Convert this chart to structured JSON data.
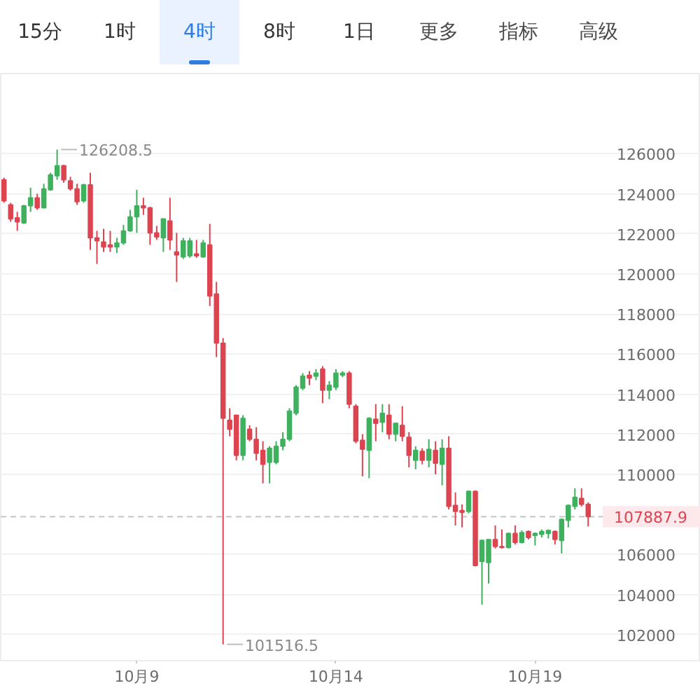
{
  "chart_data": {
    "type": "candlestick",
    "categories": [
      null,
      null,
      null,
      null,
      null,
      null,
      null,
      null,
      null,
      null,
      null,
      null,
      null,
      null,
      null,
      null,
      null,
      null,
      null,
      null,
      "10月9",
      null,
      null,
      null,
      null,
      null,
      null,
      null,
      null,
      null,
      null,
      null,
      null,
      null,
      null,
      null,
      null,
      null,
      null,
      null,
      null,
      null,
      null,
      null,
      null,
      null,
      null,
      null,
      null,
      null,
      "10月14",
      null,
      null,
      null,
      null,
      null,
      null,
      null,
      null,
      null,
      null,
      null,
      null,
      null,
      null,
      null,
      null,
      null,
      null,
      null,
      null,
      null,
      null,
      null,
      null,
      null,
      null,
      null,
      null,
      null,
      "10月19",
      null,
      null,
      null,
      null,
      null,
      null,
      null,
      null
    ],
    "ohlc": [
      [
        124700,
        124800,
        123550,
        123650
      ],
      [
        123450,
        123550,
        122600,
        122750
      ],
      [
        122800,
        123100,
        122150,
        122600
      ],
      [
        122550,
        123450,
        122500,
        123400
      ],
      [
        123400,
        124300,
        123100,
        123800
      ],
      [
        123800,
        124000,
        123200,
        123300
      ],
      [
        123300,
        124500,
        123300,
        124250
      ],
      [
        124200,
        125050,
        124150,
        124950
      ],
      [
        124900,
        126208.5,
        124700,
        125400
      ],
      [
        125400,
        125450,
        124550,
        124700
      ],
      [
        124650,
        124850,
        124150,
        124250
      ],
      [
        124250,
        124500,
        123450,
        123600
      ],
      [
        123650,
        124500,
        123550,
        124450
      ],
      [
        124450,
        125050,
        121200,
        121800
      ],
      [
        121800,
        122150,
        120500,
        121650
      ],
      [
        121600,
        122250,
        121100,
        121350
      ],
      [
        121450,
        122150,
        121100,
        121350
      ],
      [
        121350,
        121800,
        121050,
        121550
      ],
      [
        121550,
        122450,
        121450,
        122150
      ],
      [
        122150,
        123200,
        122100,
        122850
      ],
      [
        122850,
        124200,
        122050,
        123400
      ],
      [
        123400,
        123800,
        122950,
        123300
      ],
      [
        123300,
        123350,
        121450,
        122050
      ],
      [
        122050,
        122400,
        121700,
        121850
      ],
      [
        121800,
        122750,
        121100,
        122750
      ],
      [
        122650,
        123800,
        121200,
        121700
      ],
      [
        121100,
        122050,
        119600,
        120950
      ],
      [
        120850,
        121800,
        120750,
        121650
      ],
      [
        120900,
        121800,
        120800,
        121650
      ],
      [
        121000,
        121700,
        120800,
        120900
      ],
      [
        120850,
        121700,
        120800,
        121550
      ],
      [
        121450,
        122500,
        118400,
        118900
      ],
      [
        119000,
        119600,
        115850,
        116550
      ],
      [
        116550,
        116800,
        101516.5,
        112800
      ],
      [
        112700,
        113300,
        111900,
        112250
      ],
      [
        112950,
        112950,
        110700,
        110950
      ],
      [
        110950,
        112950,
        110700,
        112800
      ],
      [
        112250,
        112450,
        111650,
        111750
      ],
      [
        111750,
        112350,
        110700,
        111050
      ],
      [
        111200,
        111650,
        109550,
        110500
      ],
      [
        110600,
        111400,
        109550,
        111300
      ],
      [
        110600,
        111650,
        110500,
        111400
      ],
      [
        111400,
        112100,
        111200,
        111750
      ],
      [
        111750,
        113300,
        111650,
        113150
      ],
      [
        113050,
        114450,
        112950,
        114350
      ],
      [
        114300,
        115050,
        114200,
        114900
      ],
      [
        114950,
        115150,
        114450,
        114800
      ],
      [
        114900,
        115250,
        114700,
        115050
      ],
      [
        115250,
        115400,
        113550,
        114200
      ],
      [
        114200,
        114650,
        113750,
        114450
      ],
      [
        114350,
        115250,
        114200,
        115050
      ],
      [
        114950,
        115150,
        114850,
        115050
      ],
      [
        115050,
        115150,
        113300,
        113500
      ],
      [
        113400,
        113500,
        111550,
        111650
      ],
      [
        111700,
        112000,
        109900,
        111250
      ],
      [
        111200,
        112850,
        109800,
        112800
      ],
      [
        112750,
        113500,
        111650,
        112550
      ],
      [
        112600,
        113500,
        112100,
        113050
      ],
      [
        112950,
        113500,
        111750,
        112000
      ],
      [
        112000,
        112550,
        111650,
        112550
      ],
      [
        112450,
        113400,
        111650,
        111900
      ],
      [
        111850,
        112100,
        110350,
        110950
      ],
      [
        110700,
        111400,
        110250,
        111200
      ],
      [
        111150,
        111300,
        110500,
        110700
      ],
      [
        110700,
        111750,
        110350,
        111250
      ],
      [
        111200,
        111650,
        110000,
        110550
      ],
      [
        110500,
        111750,
        109450,
        111300
      ],
      [
        111300,
        111900,
        108250,
        108400
      ],
      [
        108450,
        109100,
        107450,
        108150
      ],
      [
        108200,
        108500,
        107350,
        108100
      ],
      [
        108150,
        109200,
        108050,
        109150
      ],
      [
        109150,
        109200,
        105400,
        105450
      ],
      [
        105650,
        106750,
        103500,
        106700
      ],
      [
        105600,
        106750,
        104550,
        106750
      ],
      [
        106750,
        107450,
        106300,
        106400
      ],
      [
        106400,
        107250,
        106300,
        106350
      ],
      [
        106350,
        107100,
        106300,
        107050
      ],
      [
        107050,
        107450,
        106500,
        106600
      ],
      [
        106600,
        107200,
        106550,
        107100
      ],
      [
        107150,
        107200,
        106750,
        106850
      ],
      [
        106950,
        107100,
        106450,
        107050
      ],
      [
        107000,
        107250,
        106850,
        107150
      ],
      [
        107050,
        107250,
        106800,
        107200
      ],
      [
        107150,
        107200,
        106500,
        106750
      ],
      [
        106700,
        107800,
        106050,
        107750
      ],
      [
        107700,
        108500,
        107350,
        108450
      ],
      [
        108400,
        109300,
        108250,
        108850
      ],
      [
        108800,
        109300,
        108400,
        108500
      ],
      [
        108500,
        108600,
        107400,
        107887.9
      ]
    ],
    "colors": [
      "#dc4450",
      "#dc4450",
      "#dc4450",
      "#3fb15e",
      "#3fb15e",
      "#dc4450",
      "#3fb15e",
      "#3fb15e",
      "#3fb15e",
      "#dc4450",
      "#dc4450",
      "#dc4450",
      "#3fb15e",
      "#dc4450",
      "#dc4450",
      "#dc4450",
      "#dc4450",
      "#3fb15e",
      "#3fb15e",
      "#3fb15e",
      "#3fb15e",
      "#dc4450",
      "#dc4450",
      "#dc4450",
      "#3fb15e",
      "#dc4450",
      "#dc4450",
      "#3fb15e",
      "#3fb15e",
      "#dc4450",
      "#3fb15e",
      "#dc4450",
      "#dc4450",
      "#dc4450",
      "#dc4450",
      "#dc4450",
      "#3fb15e",
      "#dc4450",
      "#dc4450",
      "#dc4450",
      "#3fb15e",
      "#3fb15e",
      "#3fb15e",
      "#3fb15e",
      "#3fb15e",
      "#3fb15e",
      "#dc4450",
      "#3fb15e",
      "#dc4450",
      "#3fb15e",
      "#3fb15e",
      "#3fb15e",
      "#dc4450",
      "#dc4450",
      "#dc4450",
      "#3fb15e",
      "#dc4450",
      "#3fb15e",
      "#dc4450",
      "#3fb15e",
      "#dc4450",
      "#dc4450",
      "#3fb15e",
      "#dc4450",
      "#3fb15e",
      "#dc4450",
      "#3fb15e",
      "#dc4450",
      "#dc4450",
      "#dc4450",
      "#3fb15e",
      "#dc4450",
      "#3fb15e",
      "#3fb15e",
      "#dc4450",
      "#dc4450",
      "#3fb15e",
      "#dc4450",
      "#3fb15e",
      "#dc4450",
      "#3fb15e",
      "#3fb15e",
      "#3fb15e",
      "#dc4450",
      "#3fb15e",
      "#3fb15e",
      "#3fb15e",
      "#dc4450",
      "#dc4450"
    ],
    "ylim": [
      100700,
      130000
    ],
    "yticks": [
      102000,
      104000,
      106000,
      110000,
      112000,
      114000,
      116000,
      118000,
      120000,
      122000,
      124000,
      126000
    ],
    "grid": "y",
    "ref_lines": [
      {
        "axis": "y",
        "value": 107887.9,
        "label": "107887.9",
        "color": "#c4c4c4",
        "line_style": "dashed"
      }
    ],
    "annotations": [
      "15分",
      "1时",
      "4时",
      "8时",
      "1日",
      "更多",
      "指标",
      "高级",
      "126208.5",
      "101516.5"
    ]
  }
}
